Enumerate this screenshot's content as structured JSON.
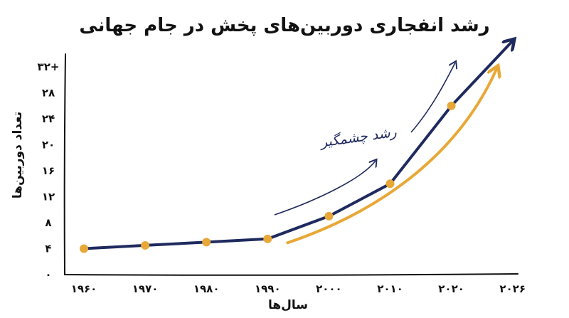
{
  "chart_data": {
    "type": "line",
    "title": "رشد انفجاری دوربین‌های پخش در جام جهانی",
    "xlabel": "سال‌ها",
    "ylabel": "تعداد دوربین‌ها",
    "categories": [
      "۱۹۶۰",
      "۱۹۷۰",
      "۱۹۸۰",
      "۱۹۹۰",
      "۲۰۰۰",
      "۲۰۱۰",
      "۲۰۲۰",
      "۲۰۲۶"
    ],
    "y_ticks": [
      "۰",
      "۴",
      "۸",
      "۱۲",
      "۱۶",
      "۲۰",
      "۲۴",
      "۲۸",
      "۳۲+"
    ],
    "ylim": [
      0,
      32
    ],
    "series": [
      {
        "values": [
          4,
          4.5,
          5,
          5.5,
          9,
          14,
          26,
          36
        ]
      }
    ],
    "annotation": "رشد چشمگیر",
    "grid": false,
    "colors": {
      "line": "#1f2a5e",
      "points": "#e8a838",
      "trend": "#e8a838",
      "axis": "#111111"
    }
  }
}
